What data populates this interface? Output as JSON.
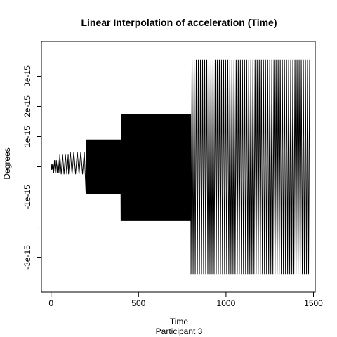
{
  "chart_data": {
    "type": "line",
    "title": "Linear Interpolation of acceleration (Time)",
    "xlabel": "Time",
    "ylabel": "Degrees",
    "subtitle": "Participant  3",
    "xlim": [
      -55,
      1510
    ],
    "ylim": [
      -4.15e-15,
      4.15e-15
    ],
    "x_ticks": [
      {
        "value": 0,
        "label": "0"
      },
      {
        "value": 500,
        "label": "500"
      },
      {
        "value": 1000,
        "label": "1000"
      },
      {
        "value": 1500,
        "label": "1500"
      }
    ],
    "y_ticks": [
      {
        "value": -3e-15,
        "label": "-3e-15"
      },
      {
        "value": -2e-15,
        "label": ""
      },
      {
        "value": -1e-15,
        "label": "-1e-15"
      },
      {
        "value": 0,
        "label": ""
      },
      {
        "value": 1e-15,
        "label": "1e-15"
      },
      {
        "value": 2e-15,
        "label": "2e-15"
      },
      {
        "value": 3e-15,
        "label": "3e-15"
      }
    ],
    "grid": false,
    "line_color": "#000000",
    "series": [
      {
        "values_description": "rapidly alternating signal",
        "segments": [
          {
            "x": [
              0,
              15
            ],
            "amp_pos": 1e-16,
            "amp_neg": 1e-16,
            "stride": 3
          },
          {
            "x": [
              15,
              50
            ],
            "amp_pos": 2.2e-16,
            "amp_neg": 2e-16,
            "stride": 5
          },
          {
            "x": [
              50,
              100
            ],
            "amp_pos": 4e-16,
            "amp_neg": 2.5e-16,
            "stride": 8
          },
          {
            "x": [
              100,
              200
            ],
            "amp_pos": 5e-16,
            "amp_neg": 2.5e-16,
            "stride": 10
          },
          {
            "x": [
              200,
              400
            ],
            "amp_pos": 9e-16,
            "amp_neg": 9e-16,
            "stride": 2
          },
          {
            "x": [
              400,
              800
            ],
            "amp_pos": 1.75e-15,
            "amp_neg": 1.8e-15,
            "stride": 2
          },
          {
            "x": [
              800,
              1480
            ],
            "amp_pos": 3.55e-15,
            "amp_neg": 3.55e-15,
            "stride": 6
          }
        ]
      }
    ]
  }
}
